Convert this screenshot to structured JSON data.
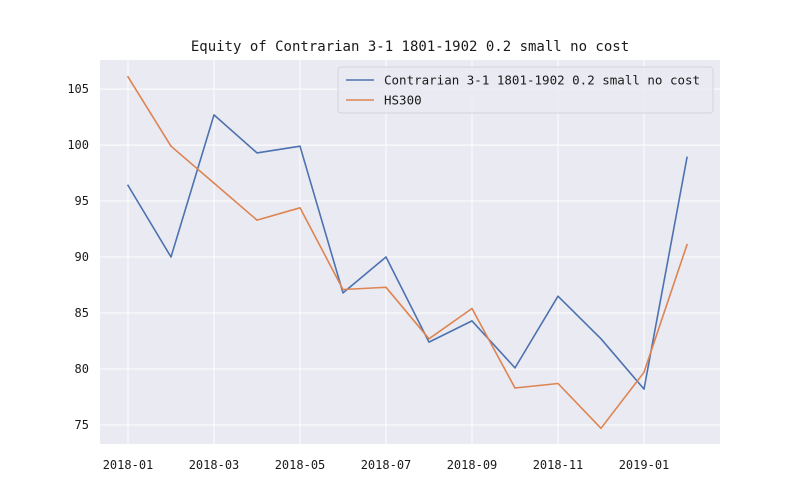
{
  "chart_data": {
    "type": "line",
    "title": "Equity of Contrarian 3-1 1801-1902 0.2 small no cost",
    "xlabel": "",
    "ylabel": "",
    "x": [
      "2018-01",
      "2018-02",
      "2018-03",
      "2018-04",
      "2018-05",
      "2018-06",
      "2018-07",
      "2018-08",
      "2018-09",
      "2018-10",
      "2018-11",
      "2018-12",
      "2019-01",
      "2019-02"
    ],
    "x_tick_labels": [
      "2018-01",
      "2018-03",
      "2018-05",
      "2018-07",
      "2018-09",
      "2018-11",
      "2019-01"
    ],
    "y_ticks": [
      75,
      80,
      85,
      90,
      95,
      100,
      105
    ],
    "ylim": [
      73.3,
      107.6
    ],
    "grid": true,
    "legend_position": "top-right",
    "series": [
      {
        "name": "Contrarian 3-1 1801-1902 0.2 small no cost",
        "color": "#4c72b0",
        "values": [
          96.4,
          90.0,
          102.7,
          99.3,
          99.9,
          86.8,
          90.0,
          82.4,
          84.3,
          80.1,
          86.5,
          82.7,
          78.2,
          98.9
        ]
      },
      {
        "name": "HS300",
        "color": "#dd8452",
        "values": [
          106.1,
          99.9,
          96.6,
          93.3,
          94.4,
          87.1,
          87.3,
          82.7,
          85.4,
          78.3,
          78.7,
          74.7,
          79.7,
          91.1
        ]
      }
    ]
  },
  "colors": {
    "plot_background": "#eaeaf2",
    "grid": "#ffffff"
  }
}
